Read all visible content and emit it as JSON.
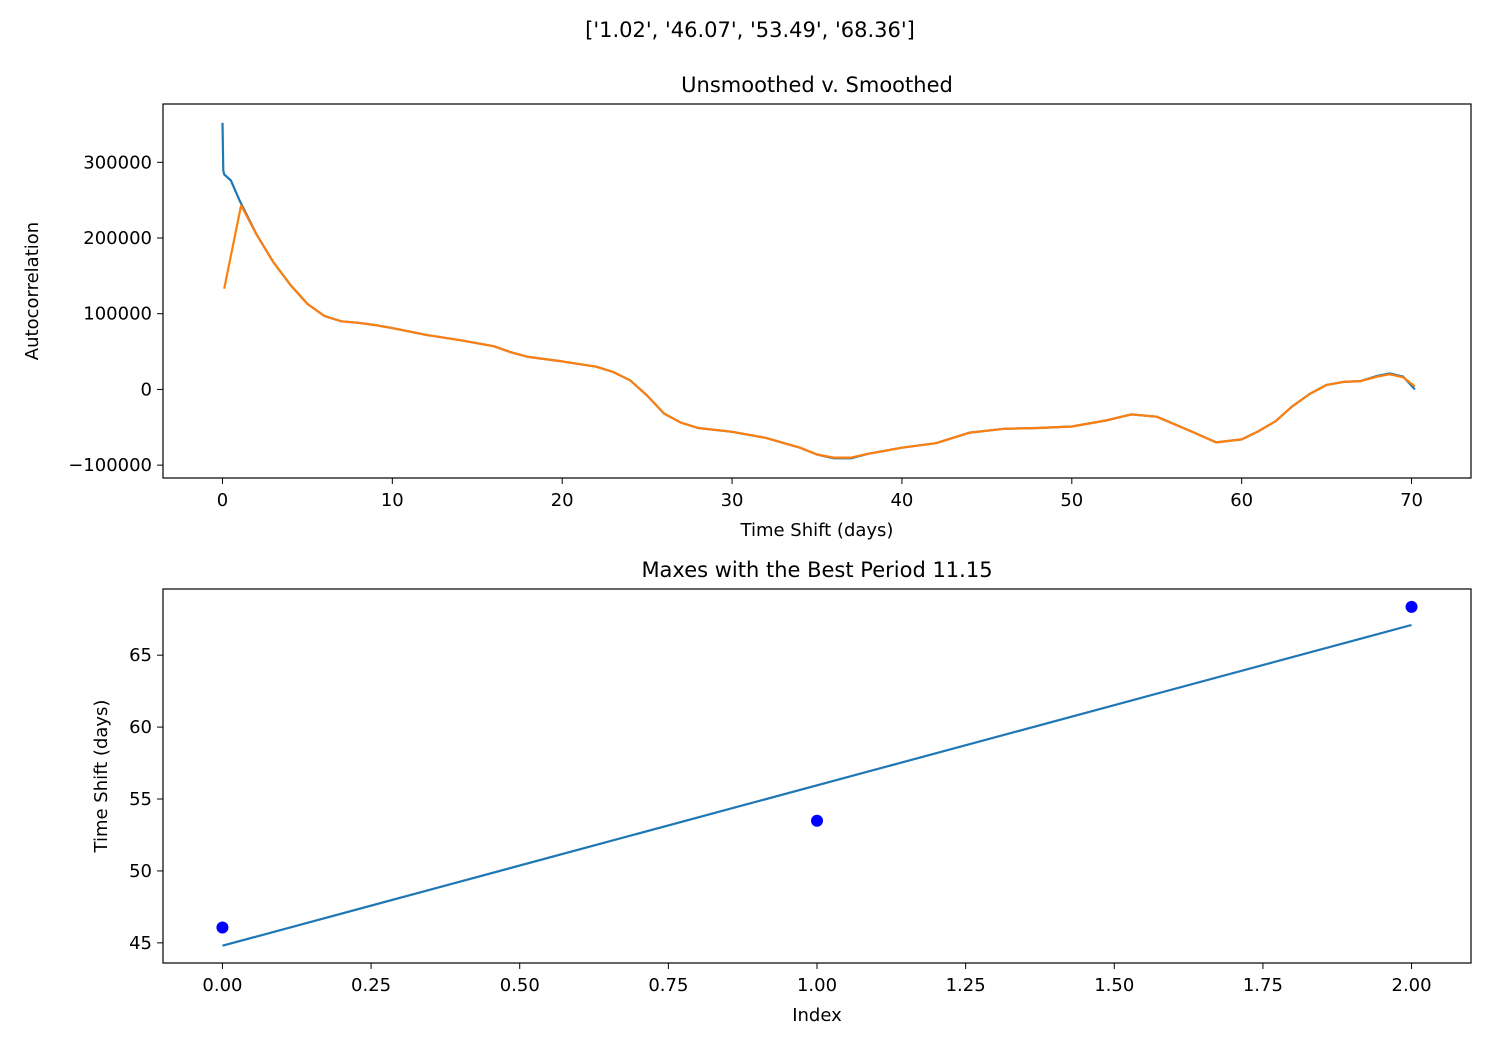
{
  "figure": {
    "suptitle": "['1.02', '46.07', '53.49', '68.36']"
  },
  "chart_data": [
    {
      "type": "line",
      "title": "Unsmoothed v. Smoothed",
      "xlabel": "Time Shift (days)",
      "ylabel": "Autocorrelation",
      "xlim": [
        -3.5,
        73.5
      ],
      "ylim": [
        -117000,
        377000
      ],
      "xticks": [
        0,
        10,
        20,
        30,
        40,
        50,
        60,
        70
      ],
      "yticks": [
        -100000,
        0,
        100000,
        200000,
        300000
      ],
      "grid": false,
      "legend": "none",
      "series": [
        {
          "color": "#1f77b4",
          "x": [
            0,
            0.05,
            0.1,
            0.5,
            1,
            2,
            3,
            4,
            5,
            6,
            7,
            8,
            9,
            10,
            12,
            14,
            16,
            17,
            18,
            20,
            22,
            23,
            24,
            25,
            26,
            27,
            28,
            30,
            32,
            34,
            35,
            36,
            37,
            38,
            40,
            42,
            44,
            46,
            48,
            50,
            52,
            53.5,
            55,
            57,
            58.5,
            60,
            61,
            62,
            63,
            64,
            65,
            66,
            67,
            68,
            68.7,
            69.5,
            70.2
          ],
          "y": [
            352000,
            289000,
            284000,
            276000,
            250000,
            205000,
            168000,
            138000,
            113000,
            97000,
            90000,
            88000,
            85000,
            81000,
            72000,
            65000,
            57000,
            49000,
            43000,
            37000,
            30000,
            23000,
            12000,
            -8000,
            -32000,
            -44000,
            -51000,
            -56000,
            -64000,
            -77000,
            -86000,
            -91000,
            -91000,
            -85000,
            -77000,
            -71000,
            -57000,
            -52000,
            -51000,
            -49000,
            -41000,
            -33000,
            -36000,
            -55000,
            -70000,
            -66000,
            -55000,
            -42000,
            -22000,
            -6000,
            6000,
            10000,
            11000,
            18000,
            21000,
            17000,
            0
          ]
        },
        {
          "color": "#ff7f0e",
          "x": [
            0.1,
            1.1,
            2,
            3,
            4,
            5,
            6,
            7,
            8,
            9,
            10,
            12,
            14,
            16,
            17,
            18,
            20,
            22,
            23,
            24,
            25,
            26,
            27,
            28,
            30,
            32,
            34,
            35,
            36,
            37,
            38,
            40,
            42,
            44,
            46,
            48,
            50,
            52,
            53.5,
            55,
            57,
            58.5,
            60,
            61,
            62,
            63,
            64,
            65,
            66,
            67,
            68,
            68.7,
            69.5,
            70.2
          ],
          "y": [
            133000,
            243000,
            205000,
            168000,
            138000,
            113000,
            97000,
            90000,
            88000,
            85000,
            81000,
            72000,
            65000,
            57000,
            49000,
            43000,
            37000,
            30000,
            23000,
            12000,
            -8000,
            -32000,
            -44000,
            -51000,
            -56000,
            -64000,
            -77000,
            -86000,
            -90000,
            -90000,
            -85000,
            -77000,
            -71000,
            -57000,
            -52000,
            -51000,
            -49000,
            -41000,
            -33000,
            -36000,
            -55000,
            -70000,
            -66000,
            -55000,
            -42000,
            -22000,
            -6000,
            6000,
            10000,
            11000,
            17000,
            20000,
            16000,
            4000
          ]
        }
      ]
    },
    {
      "type": "scatter",
      "title": "Maxes with the Best Period 11.15",
      "xlabel": "Index",
      "ylabel": "Time Shift (days)",
      "xlim": [
        -0.1,
        2.1
      ],
      "ylim": [
        43.6,
        69.6
      ],
      "xticks": [
        0.0,
        0.25,
        0.5,
        0.75,
        1.0,
        1.25,
        1.5,
        1.75,
        2.0
      ],
      "xticklabels": [
        "0.00",
        "0.25",
        "0.50",
        "0.75",
        "1.00",
        "1.25",
        "1.50",
        "1.75",
        "2.00"
      ],
      "yticks": [
        45,
        50,
        55,
        60,
        65
      ],
      "grid": false,
      "legend": "none",
      "points": {
        "color": "#0000ff",
        "x": [
          0,
          1,
          2
        ],
        "y": [
          46.07,
          53.49,
          68.36
        ]
      },
      "fit_line": {
        "color": "#1f77b4",
        "x": [
          0,
          2
        ],
        "y": [
          44.8,
          67.1
        ]
      }
    }
  ]
}
